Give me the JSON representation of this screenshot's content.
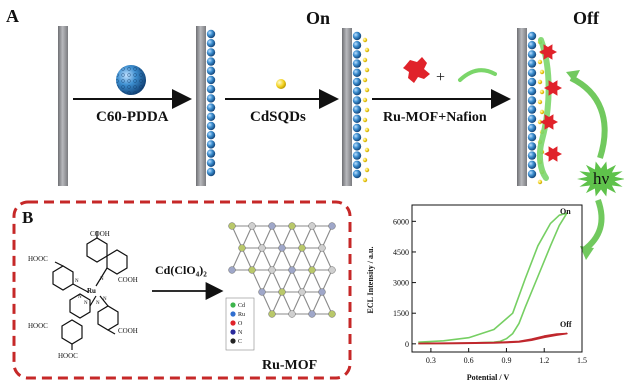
{
  "panel_a": {
    "label": "A",
    "step1": "C60-PDDA",
    "step2": "CdSQDs",
    "step3": "Ru-MOF+Nafion",
    "plus": "+",
    "state_on": "On",
    "state_off": "Off",
    "light": "hν"
  },
  "panel_b": {
    "label": "B",
    "reagent": "Cd(ClO₄)₂",
    "product": "Ru-MOF",
    "linker_groups": [
      "COOH",
      "HOOC",
      "COOH",
      "HOOC",
      "COOH",
      "HOOC"
    ],
    "metal_center": "Ru",
    "n_labels": [
      "N",
      "N",
      "N",
      "N",
      "N",
      "N"
    ],
    "legend": [
      "Cd",
      "Ru",
      "O",
      "N",
      "C"
    ]
  },
  "colors": {
    "electrode": "#8f9094",
    "c60_sphere": "#2e7fc0",
    "quantum_dot": "#f2d324",
    "ru_mof": "#e0222a",
    "nafion": "#7bd66a",
    "on_curve": "#76cf63",
    "off_curve": "#c0272d",
    "dashed_box": "#c62828"
  },
  "chart_data": {
    "type": "line",
    "title": "",
    "xlabel": "Potential / V",
    "ylabel": "ECL Intensity / a.u.",
    "xlim": [
      0.15,
      1.5
    ],
    "ylim": [
      -400,
      6800
    ],
    "xticks": [
      "0.3",
      "0.6",
      "0.9",
      "1.2",
      "1.5"
    ],
    "yticks": [
      "0",
      "1500",
      "3000",
      "4500",
      "6000"
    ],
    "series": [
      {
        "name": "On",
        "x": [
          0.2,
          0.4,
          0.6,
          0.8,
          0.95,
          1.05,
          1.15,
          1.25,
          1.32,
          1.38,
          1.32,
          1.25,
          1.15,
          1.05,
          1.0,
          0.95,
          0.9,
          0.85,
          0.8,
          0.6,
          0.4,
          0.2
        ],
        "y": [
          80,
          150,
          300,
          700,
          1500,
          3200,
          4800,
          5900,
          6300,
          6400,
          5800,
          4800,
          3300,
          1800,
          1000,
          500,
          250,
          120,
          80,
          40,
          20,
          10
        ]
      },
      {
        "name": "Off",
        "x": [
          0.2,
          0.5,
          0.8,
          1.0,
          1.1,
          1.2,
          1.3,
          1.38,
          1.3,
          1.2,
          1.1,
          1.0,
          0.8,
          0.5,
          0.2
        ],
        "y": [
          20,
          40,
          60,
          120,
          230,
          380,
          480,
          500,
          430,
          320,
          180,
          90,
          40,
          20,
          10
        ]
      }
    ]
  }
}
